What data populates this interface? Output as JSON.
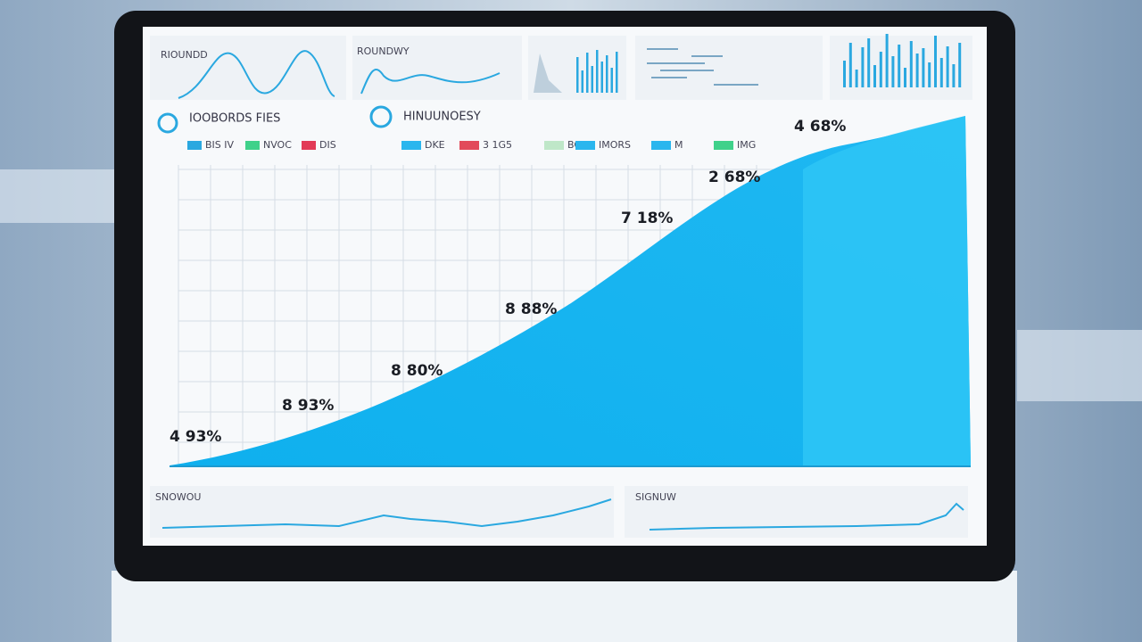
{
  "top_panels": [
    {
      "title": "RIOUNDD"
    },
    {
      "title": "ROUNDWY"
    }
  ],
  "sections": [
    {
      "title": "IOOBORDS FIES",
      "legend": [
        "BIS IV",
        "NVOC",
        "DIS"
      ]
    },
    {
      "title": "HINUUNOESY",
      "legend": [
        "DKE",
        "3 1G5",
        "BON",
        "IMORS",
        "M",
        "IMG"
      ]
    }
  ],
  "main_chart": {
    "annotations": [
      "4 93%",
      "8 93%",
      "8 80%",
      "8 88%",
      "7 18%",
      "2 68%",
      "4 68%"
    ]
  },
  "bottom_panels": [
    {
      "title": "SNOWOU"
    },
    {
      "title": "SIGNUW"
    }
  ]
}
